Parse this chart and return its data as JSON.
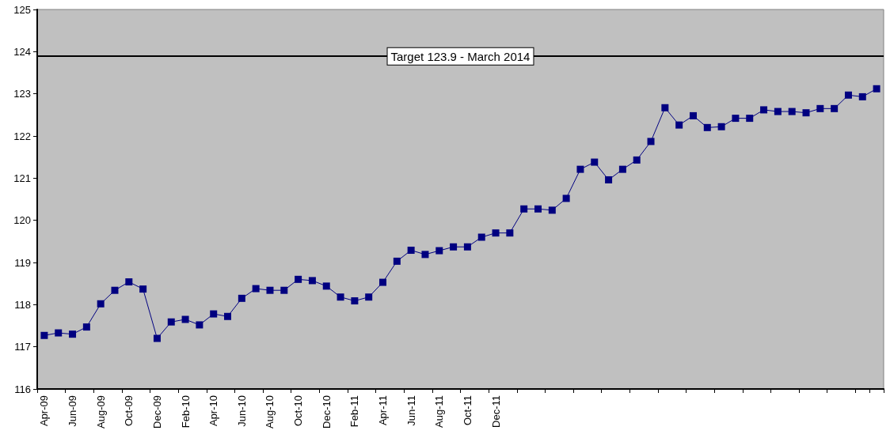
{
  "chart_data": {
    "type": "line",
    "categories": [
      "Apr-09",
      null,
      "Jun-09",
      null,
      "Aug-09",
      null,
      "Oct-09",
      null,
      "Dec-09",
      null,
      "Feb-10",
      null,
      "Apr-10",
      null,
      "Jun-10",
      null,
      "Aug-10",
      null,
      "Oct-10",
      null,
      "Dec-10",
      null,
      "Feb-11",
      null,
      "Apr-11",
      null,
      "Jun-11",
      null,
      "Aug-11",
      null,
      "Oct-11",
      null,
      "Dec-11",
      null,
      null,
      null,
      null,
      null,
      null,
      null,
      null,
      null,
      null,
      null,
      null,
      null,
      null,
      null,
      null,
      null,
      null,
      null,
      null,
      null,
      null,
      null,
      null,
      null,
      null,
      null
    ],
    "series": [
      {
        "color": "#000080",
        "values": [
          117.27,
          117.33,
          117.3,
          117.47,
          118.02,
          118.34,
          118.54,
          118.37,
          117.2,
          117.59,
          117.65,
          117.52,
          117.78,
          117.72,
          118.15,
          118.38,
          118.34,
          118.34,
          118.6,
          118.57,
          118.44,
          118.18,
          118.09,
          118.18,
          118.53,
          119.03,
          119.29,
          119.19,
          119.28,
          119.37,
          119.37,
          119.6,
          119.7,
          119.7,
          120.27,
          120.27,
          120.24,
          120.52,
          121.21,
          121.38,
          120.96,
          121.21,
          121.43,
          121.87,
          122.67,
          122.26,
          122.48,
          122.2,
          122.22,
          122.42,
          122.42,
          122.62,
          122.58,
          122.58,
          122.55,
          122.65,
          122.65,
          122.97,
          122.93,
          123.12
        ]
      }
    ],
    "ylim": [
      116,
      125
    ],
    "yticks": [
      116,
      117,
      118,
      119,
      120,
      121,
      122,
      123,
      124,
      125
    ],
    "grid": false,
    "marker": "square",
    "line_style": "solid",
    "ref_lines": [
      {
        "axis": "y",
        "value": 123.9,
        "label": "Target 123.9 - March 2014"
      }
    ]
  }
}
